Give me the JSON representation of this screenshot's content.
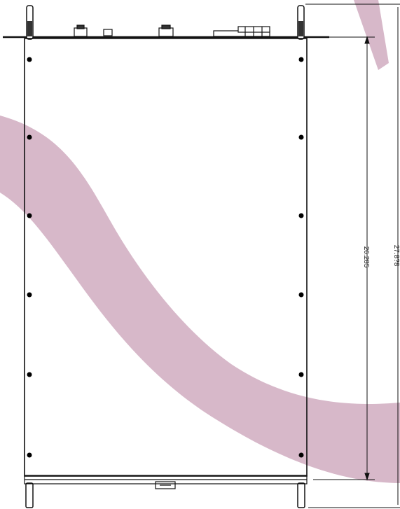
{
  "drawing": {
    "dimensions": {
      "inner_height": "26.285",
      "overall_height": "27.8?8"
    },
    "colors": {
      "watermark": "#d7b8c9",
      "line": "#111111",
      "screw": "#000000"
    }
  }
}
